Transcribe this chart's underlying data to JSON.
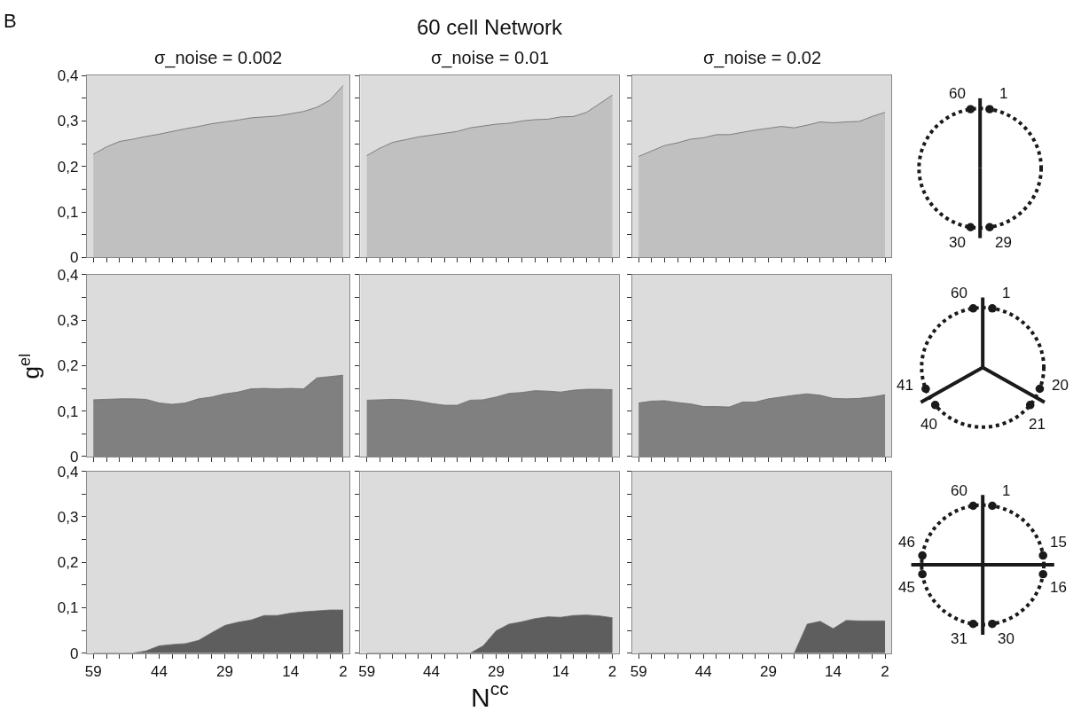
{
  "chart_data": [
    {
      "type": "area",
      "title": "σ_noise = 0.002",
      "annotations": [
        "B"
      ],
      "tick_labels": "y",
      "x": [
        59,
        56,
        53,
        50,
        47,
        44,
        41,
        38,
        35,
        32,
        29,
        26,
        23,
        20,
        17,
        14,
        11,
        8,
        5,
        2
      ],
      "xlim": [
        60.5,
        0.5
      ],
      "xticks": [
        {
          "value": 59,
          "label": null
        },
        {
          "value": 56,
          "label": null
        },
        {
          "value": 53,
          "label": null
        },
        {
          "value": 50,
          "label": null
        },
        {
          "value": 47,
          "label": null
        },
        {
          "value": 44,
          "label": null
        },
        {
          "value": 41,
          "label": null
        },
        {
          "value": 38,
          "label": null
        },
        {
          "value": 35,
          "label": null
        },
        {
          "value": 32,
          "label": null
        },
        {
          "value": 29,
          "label": null
        },
        {
          "value": 26,
          "label": null
        },
        {
          "value": 23,
          "label": null
        },
        {
          "value": 20,
          "label": null
        },
        {
          "value": 17,
          "label": null
        },
        {
          "value": 14,
          "label": null
        },
        {
          "value": 11,
          "label": null
        },
        {
          "value": 8,
          "label": null
        },
        {
          "value": 5,
          "label": null
        },
        {
          "value": 2,
          "label": null
        }
      ],
      "ylim": [
        0,
        0.4
      ],
      "yticks": [
        0,
        {
          "value": 0.05,
          "label": null
        },
        {
          "value": 0.1,
          "label": "0,1"
        },
        {
          "value": 0.15,
          "label": null
        },
        {
          "value": 0.2,
          "label": "0,2"
        },
        {
          "value": 0.25,
          "label": null
        },
        {
          "value": 0.3,
          "label": "0,3"
        },
        {
          "value": 0.35,
          "label": null
        },
        {
          "value": 0.4,
          "label": "0,4"
        }
      ],
      "series": [
        {
          "color": "#c0c0c0",
          "values": [
            0.227,
            0.243,
            0.255,
            0.26,
            0.266,
            0.271,
            0.277,
            0.283,
            0.288,
            0.294,
            0.298,
            0.302,
            0.307,
            0.309,
            0.311,
            0.316,
            0.321,
            0.33,
            0.346,
            0.378
          ]
        }
      ]
    },
    {
      "type": "area",
      "title": "σ_noise = 0.01",
      "annotations": [
        "60 cell Network"
      ],
      "tick_labels": false,
      "x": [
        59,
        56,
        53,
        50,
        47,
        44,
        41,
        38,
        35,
        32,
        29,
        26,
        23,
        20,
        17,
        14,
        11,
        8,
        5,
        2
      ],
      "xlim": [
        60.5,
        0.5
      ],
      "xticks": [
        {
          "value": 59,
          "label": null
        },
        {
          "value": 56,
          "label": null
        },
        {
          "value": 53,
          "label": null
        },
        {
          "value": 50,
          "label": null
        },
        {
          "value": 47,
          "label": null
        },
        {
          "value": 44,
          "label": null
        },
        {
          "value": 41,
          "label": null
        },
        {
          "value": 38,
          "label": null
        },
        {
          "value": 35,
          "label": null
        },
        {
          "value": 32,
          "label": null
        },
        {
          "value": 29,
          "label": null
        },
        {
          "value": 26,
          "label": null
        },
        {
          "value": 23,
          "label": null
        },
        {
          "value": 20,
          "label": null
        },
        {
          "value": 17,
          "label": null
        },
        {
          "value": 14,
          "label": null
        },
        {
          "value": 11,
          "label": null
        },
        {
          "value": 8,
          "label": null
        },
        {
          "value": 5,
          "label": null
        },
        {
          "value": 2,
          "label": null
        }
      ],
      "ylim": [
        0,
        0.4
      ],
      "yticks": [
        {
          "value": 0,
          "label": null
        },
        {
          "value": 0.05,
          "label": null
        },
        {
          "value": 0.1,
          "label": null
        },
        {
          "value": 0.15,
          "label": null
        },
        {
          "value": 0.2,
          "label": null
        },
        {
          "value": 0.25,
          "label": null
        },
        {
          "value": 0.3,
          "label": null
        },
        {
          "value": 0.35,
          "label": null
        },
        {
          "value": 0.4,
          "label": null
        }
      ],
      "series": [
        {
          "color": "#c0c0c0",
          "values": [
            0.224,
            0.24,
            0.253,
            0.259,
            0.265,
            0.269,
            0.273,
            0.277,
            0.285,
            0.289,
            0.293,
            0.295,
            0.3,
            0.303,
            0.304,
            0.309,
            0.31,
            0.319,
            0.338,
            0.357
          ]
        }
      ]
    },
    {
      "type": "area",
      "title": "σ_noise = 0.02",
      "tick_labels": false,
      "x": [
        59,
        56,
        53,
        50,
        47,
        44,
        41,
        38,
        35,
        32,
        29,
        26,
        23,
        20,
        17,
        14,
        11,
        8,
        5,
        2
      ],
      "xlim": [
        60.5,
        0.5
      ],
      "xticks": [
        {
          "value": 59,
          "label": null
        },
        {
          "value": 56,
          "label": null
        },
        {
          "value": 53,
          "label": null
        },
        {
          "value": 50,
          "label": null
        },
        {
          "value": 47,
          "label": null
        },
        {
          "value": 44,
          "label": null
        },
        {
          "value": 41,
          "label": null
        },
        {
          "value": 38,
          "label": null
        },
        {
          "value": 35,
          "label": null
        },
        {
          "value": 32,
          "label": null
        },
        {
          "value": 29,
          "label": null
        },
        {
          "value": 26,
          "label": null
        },
        {
          "value": 23,
          "label": null
        },
        {
          "value": 20,
          "label": null
        },
        {
          "value": 17,
          "label": null
        },
        {
          "value": 14,
          "label": null
        },
        {
          "value": 11,
          "label": null
        },
        {
          "value": 8,
          "label": null
        },
        {
          "value": 5,
          "label": null
        },
        {
          "value": 2,
          "label": null
        }
      ],
      "ylim": [
        0,
        0.4
      ],
      "yticks": [
        {
          "value": 0,
          "label": null
        },
        {
          "value": 0.05,
          "label": null
        },
        {
          "value": 0.1,
          "label": null
        },
        {
          "value": 0.15,
          "label": null
        },
        {
          "value": 0.2,
          "label": null
        },
        {
          "value": 0.25,
          "label": null
        },
        {
          "value": 0.3,
          "label": null
        },
        {
          "value": 0.35,
          "label": null
        },
        {
          "value": 0.4,
          "label": null
        }
      ],
      "series": [
        {
          "color": "#c0c0c0",
          "values": [
            0.222,
            0.234,
            0.246,
            0.252,
            0.26,
            0.263,
            0.27,
            0.27,
            0.275,
            0.28,
            0.284,
            0.288,
            0.285,
            0.291,
            0.298,
            0.296,
            0.298,
            0.299,
            0.31,
            0.319
          ]
        }
      ]
    },
    {
      "type": "area",
      "ylabel": "g$^{el}$",
      "tick_labels": "y",
      "x": [
        59,
        56,
        53,
        50,
        47,
        44,
        41,
        38,
        35,
        32,
        29,
        26,
        23,
        20,
        17,
        14,
        11,
        8,
        5,
        2
      ],
      "xlim": [
        60.5,
        0.5
      ],
      "xticks": [
        {
          "value": 59,
          "label": null
        },
        {
          "value": 56,
          "label": null
        },
        {
          "value": 53,
          "label": null
        },
        {
          "value": 50,
          "label": null
        },
        {
          "value": 47,
          "label": null
        },
        {
          "value": 44,
          "label": null
        },
        {
          "value": 41,
          "label": null
        },
        {
          "value": 38,
          "label": null
        },
        {
          "value": 35,
          "label": null
        },
        {
          "value": 32,
          "label": null
        },
        {
          "value": 29,
          "label": null
        },
        {
          "value": 26,
          "label": null
        },
        {
          "value": 23,
          "label": null
        },
        {
          "value": 20,
          "label": null
        },
        {
          "value": 17,
          "label": null
        },
        {
          "value": 14,
          "label": null
        },
        {
          "value": 11,
          "label": null
        },
        {
          "value": 8,
          "label": null
        },
        {
          "value": 5,
          "label": null
        },
        {
          "value": 2,
          "label": null
        }
      ],
      "ylim": [
        0,
        0.4
      ],
      "yticks": [
        0,
        {
          "value": 0.05,
          "label": null
        },
        {
          "value": 0.1,
          "label": "0,1"
        },
        {
          "value": 0.15,
          "label": null
        },
        {
          "value": 0.2,
          "label": "0,2"
        },
        {
          "value": 0.25,
          "label": null
        },
        {
          "value": 0.3,
          "label": "0,3"
        },
        {
          "value": 0.35,
          "label": null
        },
        {
          "value": 0.4,
          "label": "0,4"
        }
      ],
      "series": [
        {
          "color": "#808080",
          "values": [
            0.125,
            0.126,
            0.127,
            0.127,
            0.126,
            0.118,
            0.115,
            0.118,
            0.127,
            0.131,
            0.138,
            0.142,
            0.149,
            0.15,
            0.149,
            0.15,
            0.149,
            0.173,
            0.176,
            0.179
          ]
        }
      ]
    },
    {
      "type": "area",
      "tick_labels": false,
      "x": [
        59,
        56,
        53,
        50,
        47,
        44,
        41,
        38,
        35,
        32,
        29,
        26,
        23,
        20,
        17,
        14,
        11,
        8,
        5,
        2
      ],
      "xlim": [
        60.5,
        0.5
      ],
      "xticks": [
        {
          "value": 59,
          "label": null
        },
        {
          "value": 56,
          "label": null
        },
        {
          "value": 53,
          "label": null
        },
        {
          "value": 50,
          "label": null
        },
        {
          "value": 47,
          "label": null
        },
        {
          "value": 44,
          "label": null
        },
        {
          "value": 41,
          "label": null
        },
        {
          "value": 38,
          "label": null
        },
        {
          "value": 35,
          "label": null
        },
        {
          "value": 32,
          "label": null
        },
        {
          "value": 29,
          "label": null
        },
        {
          "value": 26,
          "label": null
        },
        {
          "value": 23,
          "label": null
        },
        {
          "value": 20,
          "label": null
        },
        {
          "value": 17,
          "label": null
        },
        {
          "value": 14,
          "label": null
        },
        {
          "value": 11,
          "label": null
        },
        {
          "value": 8,
          "label": null
        },
        {
          "value": 5,
          "label": null
        },
        {
          "value": 2,
          "label": null
        }
      ],
      "ylim": [
        0,
        0.4
      ],
      "yticks": [
        {
          "value": 0,
          "label": null
        },
        {
          "value": 0.05,
          "label": null
        },
        {
          "value": 0.1,
          "label": null
        },
        {
          "value": 0.15,
          "label": null
        },
        {
          "value": 0.2,
          "label": null
        },
        {
          "value": 0.25,
          "label": null
        },
        {
          "value": 0.3,
          "label": null
        },
        {
          "value": 0.35,
          "label": null
        },
        {
          "value": 0.4,
          "label": null
        }
      ],
      "series": [
        {
          "color": "#808080",
          "values": [
            0.124,
            0.125,
            0.126,
            0.125,
            0.122,
            0.117,
            0.113,
            0.113,
            0.124,
            0.125,
            0.131,
            0.139,
            0.141,
            0.145,
            0.144,
            0.142,
            0.146,
            0.148,
            0.148,
            0.147
          ]
        }
      ]
    },
    {
      "type": "area",
      "tick_labels": false,
      "x": [
        59,
        56,
        53,
        50,
        47,
        44,
        41,
        38,
        35,
        32,
        29,
        26,
        23,
        20,
        17,
        14,
        11,
        8,
        5,
        2
      ],
      "xlim": [
        60.5,
        0.5
      ],
      "xticks": [
        {
          "value": 59,
          "label": null
        },
        {
          "value": 56,
          "label": null
        },
        {
          "value": 53,
          "label": null
        },
        {
          "value": 50,
          "label": null
        },
        {
          "value": 47,
          "label": null
        },
        {
          "value": 44,
          "label": null
        },
        {
          "value": 41,
          "label": null
        },
        {
          "value": 38,
          "label": null
        },
        {
          "value": 35,
          "label": null
        },
        {
          "value": 32,
          "label": null
        },
        {
          "value": 29,
          "label": null
        },
        {
          "value": 26,
          "label": null
        },
        {
          "value": 23,
          "label": null
        },
        {
          "value": 20,
          "label": null
        },
        {
          "value": 17,
          "label": null
        },
        {
          "value": 14,
          "label": null
        },
        {
          "value": 11,
          "label": null
        },
        {
          "value": 8,
          "label": null
        },
        {
          "value": 5,
          "label": null
        },
        {
          "value": 2,
          "label": null
        }
      ],
      "ylim": [
        0,
        0.4
      ],
      "yticks": [
        {
          "value": 0,
          "label": null
        },
        {
          "value": 0.05,
          "label": null
        },
        {
          "value": 0.1,
          "label": null
        },
        {
          "value": 0.15,
          "label": null
        },
        {
          "value": 0.2,
          "label": null
        },
        {
          "value": 0.25,
          "label": null
        },
        {
          "value": 0.3,
          "label": null
        },
        {
          "value": 0.35,
          "label": null
        },
        {
          "value": 0.4,
          "label": null
        }
      ],
      "series": [
        {
          "color": "#808080",
          "values": [
            0.118,
            0.122,
            0.123,
            0.119,
            0.116,
            0.11,
            0.11,
            0.109,
            0.12,
            0.12,
            0.127,
            0.131,
            0.135,
            0.138,
            0.135,
            0.128,
            0.127,
            0.128,
            0.131,
            0.136
          ]
        }
      ]
    },
    {
      "type": "area",
      "x": [
        59,
        56,
        53,
        50,
        47,
        44,
        41,
        38,
        35,
        32,
        29,
        26,
        23,
        20,
        17,
        14,
        11,
        8,
        5,
        2
      ],
      "xlim": [
        60.5,
        0.5
      ],
      "xticks": [
        59,
        {
          "value": 56,
          "label": null
        },
        {
          "value": 53,
          "label": null
        },
        {
          "value": 50,
          "label": null
        },
        {
          "value": 47,
          "label": null
        },
        44,
        {
          "value": 41,
          "label": null
        },
        {
          "value": 38,
          "label": null
        },
        {
          "value": 35,
          "label": null
        },
        {
          "value": 32,
          "label": null
        },
        29,
        {
          "value": 26,
          "label": null
        },
        {
          "value": 23,
          "label": null
        },
        {
          "value": 20,
          "label": null
        },
        {
          "value": 17,
          "label": null
        },
        14,
        {
          "value": 11,
          "label": null
        },
        {
          "value": 8,
          "label": null
        },
        {
          "value": 5,
          "label": null
        },
        2
      ],
      "ylim": [
        0,
        0.4
      ],
      "yticks": [
        0,
        {
          "value": 0.05,
          "label": null
        },
        {
          "value": 0.1,
          "label": "0,1"
        },
        {
          "value": 0.15,
          "label": null
        },
        {
          "value": 0.2,
          "label": "0,2"
        },
        {
          "value": 0.25,
          "label": null
        },
        {
          "value": 0.3,
          "label": "0,3"
        },
        {
          "value": 0.35,
          "label": null
        },
        {
          "value": 0.4,
          "label": "0,4"
        }
      ],
      "series": [
        {
          "color": "#5e5e5e",
          "values": [
            0,
            0,
            0,
            0,
            0.005,
            0.016,
            0.019,
            0.021,
            0.028,
            0.045,
            0.061,
            0.068,
            0.073,
            0.083,
            0.083,
            0.088,
            0.091,
            0.093,
            0.095,
            0.095
          ]
        }
      ]
    },
    {
      "type": "area",
      "xlabel": "N$^{cc}$",
      "tick_labels": "x",
      "x": [
        59,
        56,
        53,
        50,
        47,
        44,
        41,
        38,
        35,
        32,
        29,
        26,
        23,
        20,
        17,
        14,
        11,
        8,
        5,
        2
      ],
      "xlim": [
        60.5,
        0.5
      ],
      "xticks": [
        59,
        {
          "value": 56,
          "label": null
        },
        {
          "value": 53,
          "label": null
        },
        {
          "value": 50,
          "label": null
        },
        {
          "value": 47,
          "label": null
        },
        44,
        {
          "value": 41,
          "label": null
        },
        {
          "value": 38,
          "label": null
        },
        {
          "value": 35,
          "label": null
        },
        {
          "value": 32,
          "label": null
        },
        29,
        {
          "value": 26,
          "label": null
        },
        {
          "value": 23,
          "label": null
        },
        {
          "value": 20,
          "label": null
        },
        {
          "value": 17,
          "label": null
        },
        14,
        {
          "value": 11,
          "label": null
        },
        {
          "value": 8,
          "label": null
        },
        {
          "value": 5,
          "label": null
        },
        2
      ],
      "ylim": [
        0,
        0.4
      ],
      "yticks": [
        {
          "value": 0,
          "label": null
        },
        {
          "value": 0.05,
          "label": null
        },
        {
          "value": 0.1,
          "label": null
        },
        {
          "value": 0.15,
          "label": null
        },
        {
          "value": 0.2,
          "label": null
        },
        {
          "value": 0.25,
          "label": null
        },
        {
          "value": 0.3,
          "label": null
        },
        {
          "value": 0.35,
          "label": null
        },
        {
          "value": 0.4,
          "label": null
        }
      ],
      "series": [
        {
          "color": "#5e5e5e",
          "values": [
            0,
            0,
            0,
            0,
            0,
            0,
            0,
            0,
            0,
            0.016,
            0.049,
            0.064,
            0.069,
            0.076,
            0.08,
            0.079,
            0.083,
            0.084,
            0.082,
            0.078
          ]
        }
      ]
    },
    {
      "type": "area",
      "tick_labels": "x",
      "x": [
        59,
        56,
        53,
        50,
        47,
        44,
        41,
        38,
        35,
        32,
        29,
        26,
        23,
        20,
        17,
        14,
        11,
        8,
        5,
        2
      ],
      "xlim": [
        60.5,
        0.5
      ],
      "xticks": [
        59,
        {
          "value": 56,
          "label": null
        },
        {
          "value": 53,
          "label": null
        },
        {
          "value": 50,
          "label": null
        },
        {
          "value": 47,
          "label": null
        },
        44,
        {
          "value": 41,
          "label": null
        },
        {
          "value": 38,
          "label": null
        },
        {
          "value": 35,
          "label": null
        },
        {
          "value": 32,
          "label": null
        },
        29,
        {
          "value": 26,
          "label": null
        },
        {
          "value": 23,
          "label": null
        },
        {
          "value": 20,
          "label": null
        },
        {
          "value": 17,
          "label": null
        },
        14,
        {
          "value": 11,
          "label": null
        },
        {
          "value": 8,
          "label": null
        },
        {
          "value": 5,
          "label": null
        },
        2
      ],
      "ylim": [
        0,
        0.4
      ],
      "yticks": [
        {
          "value": 0,
          "label": null
        },
        {
          "value": 0.05,
          "label": null
        },
        {
          "value": 0.1,
          "label": null
        },
        {
          "value": 0.15,
          "label": null
        },
        {
          "value": 0.2,
          "label": null
        },
        {
          "value": 0.25,
          "label": null
        },
        {
          "value": 0.3,
          "label": null
        },
        {
          "value": 0.35,
          "label": null
        },
        {
          "value": 0.4,
          "label": null
        }
      ],
      "series": [
        {
          "color": "#5e5e5e",
          "values": [
            0,
            0,
            0,
            0,
            0,
            0,
            0,
            0,
            0,
            0,
            0,
            0,
            0,
            0.064,
            0.07,
            0.054,
            0.072,
            0.071,
            0.071,
            0.071
          ]
        }
      ]
    },
    {
      "type": "other",
      "annotations": [
        "60",
        "1",
        "29",
        "30"
      ]
    },
    {
      "type": "other",
      "annotations": [
        "60",
        "1",
        "20",
        "21",
        "40",
        "41"
      ]
    },
    {
      "type": "other",
      "annotations": [
        "60",
        "1",
        "15",
        "16",
        "30",
        "31",
        "45",
        "46"
      ]
    }
  ]
}
